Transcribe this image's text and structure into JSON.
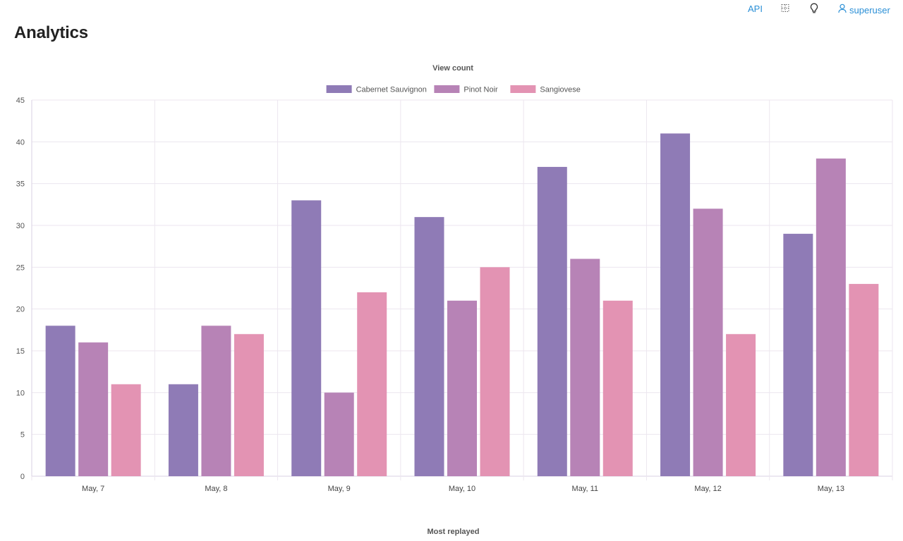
{
  "page": {
    "title": "Analytics"
  },
  "nav": {
    "api_label": "API",
    "grid_icon": "grid-icon",
    "bulb_icon": "lightbulb-icon",
    "user_icon": "user-icon",
    "user_label": "superuser",
    "link_color": "#2a8fd6"
  },
  "chart_data": {
    "type": "bar",
    "title": "View count",
    "categories": [
      "May, 7",
      "May, 8",
      "May, 9",
      "May, 10",
      "May, 11",
      "May, 12",
      "May, 13"
    ],
    "series": [
      {
        "name": "Cabernet Sauvignon",
        "color": "#8f7bb6",
        "values": [
          18,
          11,
          33,
          31,
          37,
          41,
          29
        ]
      },
      {
        "name": "Pinot Noir",
        "color": "#b783b6",
        "values": [
          16,
          18,
          10,
          21,
          26,
          32,
          38
        ]
      },
      {
        "name": "Sangiovese",
        "color": "#e393b3",
        "values": [
          11,
          17,
          22,
          25,
          21,
          17,
          23
        ]
      }
    ],
    "ylim": [
      0,
      45
    ],
    "yticks": [
      0,
      5,
      10,
      15,
      20,
      25,
      30,
      35,
      40,
      45
    ],
    "grid": true,
    "legend": "top-center",
    "xlabel": "",
    "ylabel": ""
  },
  "next_section": {
    "title": "Most replayed"
  }
}
